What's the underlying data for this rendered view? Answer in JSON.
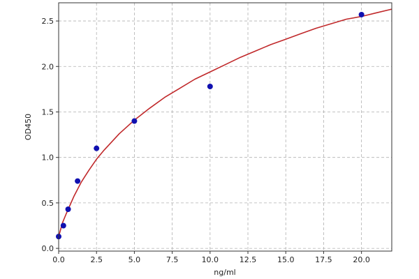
{
  "chart_data": {
    "type": "scatter",
    "xlabel": "ng/ml",
    "ylabel": "OD450",
    "xlim": [
      0,
      22
    ],
    "ylim": [
      -0.03,
      2.7
    ],
    "x_ticks": [
      0,
      2.5,
      5,
      7.5,
      10,
      12.5,
      15,
      17.5,
      20
    ],
    "x_tick_labels": [
      "0.0",
      "2.5",
      "5.0",
      "7.5",
      "10.0",
      "12.5",
      "15.0",
      "17.5",
      "20.0"
    ],
    "y_ticks": [
      0,
      0.5,
      1,
      1.5,
      2,
      2.5
    ],
    "y_tick_labels": [
      "0.0",
      "0.5",
      "1.0",
      "1.5",
      "2.0",
      "2.5"
    ],
    "grid": true,
    "series": [
      {
        "type": "scatter",
        "color": "#1010b0",
        "x": [
          0,
          0.3125,
          0.625,
          1.25,
          2.5,
          5,
          10,
          20
        ],
        "y": [
          0.13,
          0.25,
          0.43,
          0.74,
          1.1,
          1.4,
          1.78,
          2.57
        ]
      },
      {
        "type": "line",
        "color": "#c0282a",
        "x": [
          0,
          0.25,
          0.5,
          1,
          1.5,
          2,
          2.5,
          3,
          4,
          5,
          6,
          7,
          8,
          9,
          10,
          11,
          12,
          13,
          14,
          15,
          16,
          17,
          18,
          19,
          20,
          21,
          22
        ],
        "y": [
          0.13,
          0.28,
          0.38,
          0.57,
          0.73,
          0.86,
          0.98,
          1.08,
          1.26,
          1.41,
          1.54,
          1.66,
          1.76,
          1.86,
          1.94,
          2.02,
          2.1,
          2.17,
          2.24,
          2.3,
          2.36,
          2.42,
          2.47,
          2.52,
          2.55,
          2.59,
          2.63
        ]
      }
    ]
  }
}
